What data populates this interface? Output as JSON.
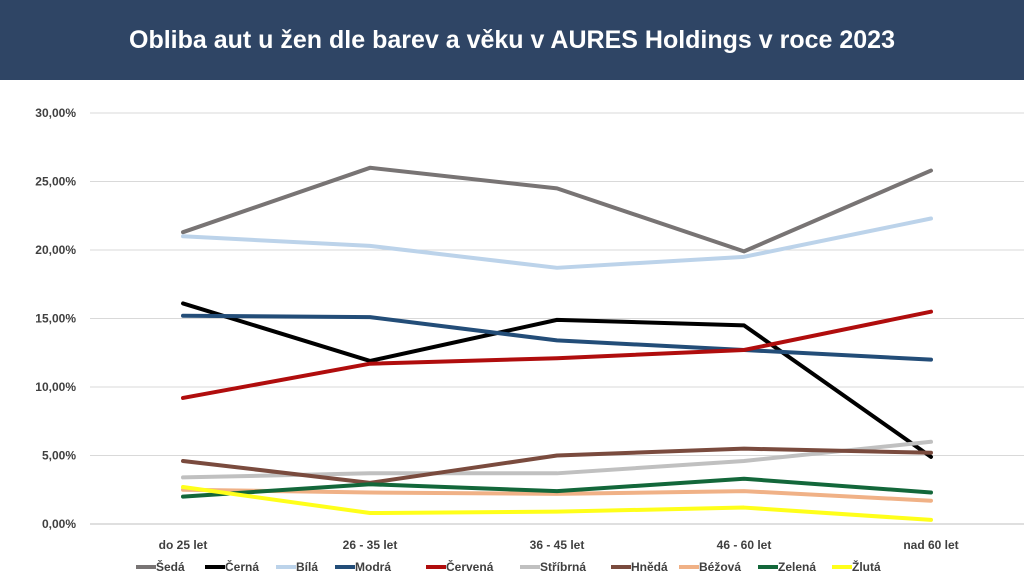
{
  "header": {
    "title": "Obliba aut u žen dle barev a věku v AURES Holdings v roce 2023"
  },
  "chart_data": {
    "type": "line",
    "title": "Obliba aut u žen dle barev a věku v AURES Holdings v roce 2023",
    "categories": [
      "do 25 let",
      "26 - 35 let",
      "36 - 45 let",
      "46 - 60 let",
      "nad 60 let"
    ],
    "ylim": [
      0,
      30
    ],
    "yticks": [
      0,
      5,
      10,
      15,
      20,
      25,
      30
    ],
    "ytick_labels": [
      "0,00%",
      "5,00%",
      "10,00%",
      "15,00%",
      "20,00%",
      "25,00%",
      "30,00%"
    ],
    "grid": true,
    "legend_position": "bottom",
    "series": [
      {
        "name": "Šedá",
        "color": "#787474",
        "values": [
          21.3,
          26.0,
          24.5,
          19.9,
          25.8
        ]
      },
      {
        "name": "Černá",
        "color": "#000000",
        "values": [
          16.1,
          11.9,
          14.9,
          14.5,
          4.9
        ]
      },
      {
        "name": "Bílá",
        "color": "#bcd3ea",
        "values": [
          21.0,
          20.3,
          18.7,
          19.5,
          22.3
        ]
      },
      {
        "name": "Modrá",
        "color": "#234d78",
        "values": [
          15.2,
          15.1,
          13.4,
          12.7,
          12.0
        ]
      },
      {
        "name": "Červená",
        "color": "#b00d0d",
        "values": [
          9.2,
          11.7,
          12.1,
          12.7,
          15.5
        ]
      },
      {
        "name": "Stříbrná",
        "color": "#c0c0c0",
        "values": [
          3.4,
          3.7,
          3.7,
          4.6,
          6.0
        ]
      },
      {
        "name": "Hnědá",
        "color": "#7a4b3e",
        "values": [
          4.6,
          3.0,
          5.0,
          5.5,
          5.2
        ]
      },
      {
        "name": "Béžová",
        "color": "#f0b186",
        "values": [
          2.5,
          2.3,
          2.2,
          2.4,
          1.7
        ]
      },
      {
        "name": "Zelená",
        "color": "#13673a",
        "values": [
          2.0,
          2.9,
          2.4,
          3.3,
          2.3
        ]
      },
      {
        "name": "Žlutá",
        "color": "#ffff1a",
        "values": [
          2.7,
          0.8,
          0.9,
          1.2,
          0.3
        ]
      }
    ]
  }
}
